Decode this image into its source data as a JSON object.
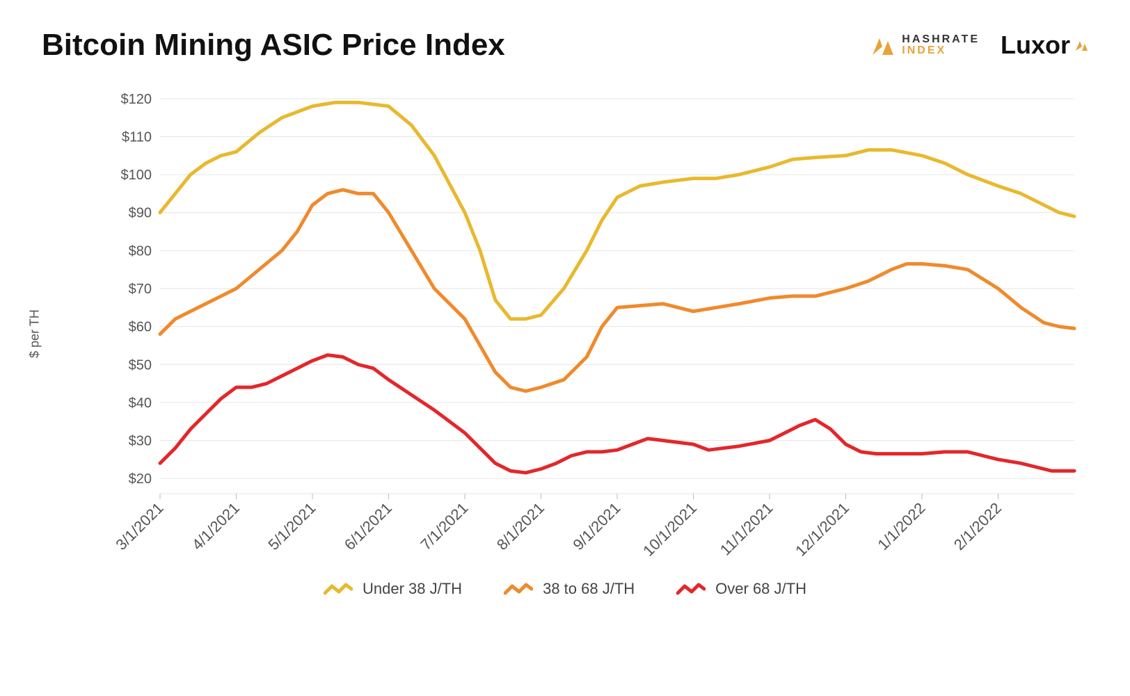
{
  "title": "Bitcoin Mining ASIC Price Index",
  "logos": {
    "hashrate": {
      "word1": "HASHRATE",
      "word2": "INDEX",
      "word1_color": "#333333",
      "word2_color": "#e9a23b",
      "icon_color": "#e9a23b"
    },
    "luxor": {
      "text": "Luxor",
      "icon_color": "#e9a23b"
    }
  },
  "chart": {
    "type": "line",
    "background_color": "#ffffff",
    "grid_color": "#e6e6e6",
    "axis_text_color": "#555555",
    "line_width": 5,
    "ylabel": "$ per TH",
    "ylabel_fontsize": 18,
    "xlim": [
      0,
      12
    ],
    "ylim": [
      16,
      124
    ],
    "yticks": {
      "start": 20,
      "end": 120,
      "step": 10,
      "prefix": "$"
    },
    "x_labels": [
      "3/1/2021",
      "4/1/2021",
      "5/1/2021",
      "6/1/2021",
      "7/1/2021",
      "8/1/2021",
      "9/1/2021",
      "10/1/2021",
      "11/1/2021",
      "12/1/2021",
      "1/1/2022",
      "2/1/2022"
    ],
    "x_label_rotation_deg": -45,
    "legend": {
      "position": "bottom-center",
      "items": [
        {
          "label": "Under 38 J/TH",
          "color": "#e8b92e"
        },
        {
          "label": "38 to 68 J/TH",
          "color": "#f08a2c"
        },
        {
          "label": "Over 68 J/TH",
          "color": "#e3272b"
        }
      ]
    },
    "series": [
      {
        "name": "Under 38 J/TH",
        "color": "#e8b92e",
        "points": [
          [
            0,
            90
          ],
          [
            0.2,
            95
          ],
          [
            0.4,
            100
          ],
          [
            0.6,
            103
          ],
          [
            0.8,
            105
          ],
          [
            1,
            106
          ],
          [
            1.3,
            111
          ],
          [
            1.6,
            115
          ],
          [
            2,
            118
          ],
          [
            2.3,
            119
          ],
          [
            2.6,
            119
          ],
          [
            3,
            118
          ],
          [
            3.3,
            113
          ],
          [
            3.6,
            105
          ],
          [
            4,
            90
          ],
          [
            4.2,
            80
          ],
          [
            4.4,
            67
          ],
          [
            4.6,
            62
          ],
          [
            4.8,
            62
          ],
          [
            5,
            63
          ],
          [
            5.3,
            70
          ],
          [
            5.6,
            80
          ],
          [
            5.8,
            88
          ],
          [
            6,
            94
          ],
          [
            6.3,
            97
          ],
          [
            6.6,
            98
          ],
          [
            7,
            99
          ],
          [
            7.3,
            99
          ],
          [
            7.6,
            100
          ],
          [
            8,
            102
          ],
          [
            8.3,
            104
          ],
          [
            8.6,
            104.5
          ],
          [
            9,
            105
          ],
          [
            9.3,
            106.5
          ],
          [
            9.6,
            106.5
          ],
          [
            10,
            105
          ],
          [
            10.3,
            103
          ],
          [
            10.6,
            100
          ],
          [
            11,
            97
          ],
          [
            11.3,
            95
          ],
          [
            11.6,
            92
          ],
          [
            11.8,
            90
          ],
          [
            12,
            89
          ]
        ]
      },
      {
        "name": "38 to 68 J/TH",
        "color": "#f08a2c",
        "points": [
          [
            0,
            58
          ],
          [
            0.2,
            62
          ],
          [
            0.4,
            64
          ],
          [
            0.6,
            66
          ],
          [
            0.8,
            68
          ],
          [
            1,
            70
          ],
          [
            1.3,
            75
          ],
          [
            1.6,
            80
          ],
          [
            1.8,
            85
          ],
          [
            2,
            92
          ],
          [
            2.2,
            95
          ],
          [
            2.4,
            96
          ],
          [
            2.6,
            95
          ],
          [
            2.8,
            95
          ],
          [
            3,
            90
          ],
          [
            3.3,
            80
          ],
          [
            3.6,
            70
          ],
          [
            4,
            62
          ],
          [
            4.2,
            55
          ],
          [
            4.4,
            48
          ],
          [
            4.6,
            44
          ],
          [
            4.8,
            43
          ],
          [
            5,
            44
          ],
          [
            5.3,
            46
          ],
          [
            5.6,
            52
          ],
          [
            5.8,
            60
          ],
          [
            6,
            65
          ],
          [
            6.3,
            65.5
          ],
          [
            6.6,
            66
          ],
          [
            7,
            64
          ],
          [
            7.3,
            65
          ],
          [
            7.6,
            66
          ],
          [
            8,
            67.5
          ],
          [
            8.3,
            68
          ],
          [
            8.6,
            68
          ],
          [
            9,
            70
          ],
          [
            9.3,
            72
          ],
          [
            9.6,
            75
          ],
          [
            9.8,
            76.5
          ],
          [
            10,
            76.5
          ],
          [
            10.3,
            76
          ],
          [
            10.6,
            75
          ],
          [
            11,
            70
          ],
          [
            11.3,
            65
          ],
          [
            11.6,
            61
          ],
          [
            11.8,
            60
          ],
          [
            12,
            59.5
          ]
        ]
      },
      {
        "name": "Over 68 J/TH",
        "color": "#e3272b",
        "points": [
          [
            0,
            24
          ],
          [
            0.2,
            28
          ],
          [
            0.4,
            33
          ],
          [
            0.6,
            37
          ],
          [
            0.8,
            41
          ],
          [
            1,
            44
          ],
          [
            1.2,
            44
          ],
          [
            1.4,
            45
          ],
          [
            1.6,
            47
          ],
          [
            1.8,
            49
          ],
          [
            2,
            51
          ],
          [
            2.2,
            52.5
          ],
          [
            2.4,
            52
          ],
          [
            2.6,
            50
          ],
          [
            2.8,
            49
          ],
          [
            3,
            46
          ],
          [
            3.3,
            42
          ],
          [
            3.6,
            38
          ],
          [
            4,
            32
          ],
          [
            4.2,
            28
          ],
          [
            4.4,
            24
          ],
          [
            4.6,
            22
          ],
          [
            4.8,
            21.5
          ],
          [
            5,
            22.5
          ],
          [
            5.2,
            24
          ],
          [
            5.4,
            26
          ],
          [
            5.6,
            27
          ],
          [
            5.8,
            27
          ],
          [
            6,
            27.5
          ],
          [
            6.2,
            29
          ],
          [
            6.4,
            30.5
          ],
          [
            6.6,
            30
          ],
          [
            7,
            29
          ],
          [
            7.2,
            27.5
          ],
          [
            7.4,
            28
          ],
          [
            7.6,
            28.5
          ],
          [
            8,
            30
          ],
          [
            8.2,
            32
          ],
          [
            8.4,
            34
          ],
          [
            8.6,
            35.5
          ],
          [
            8.8,
            33
          ],
          [
            9,
            29
          ],
          [
            9.2,
            27
          ],
          [
            9.4,
            26.5
          ],
          [
            9.6,
            26.5
          ],
          [
            10,
            26.5
          ],
          [
            10.3,
            27
          ],
          [
            10.6,
            27
          ],
          [
            10.8,
            26
          ],
          [
            11,
            25
          ],
          [
            11.3,
            24
          ],
          [
            11.5,
            23
          ],
          [
            11.7,
            22
          ],
          [
            12,
            22
          ]
        ]
      }
    ]
  }
}
